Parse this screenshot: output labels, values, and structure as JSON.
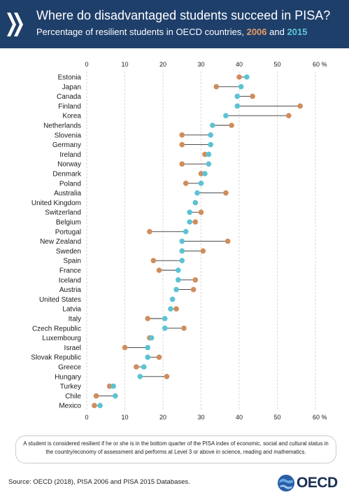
{
  "header": {
    "title": "Where do disadvantaged students succeed in PISA?",
    "subtitle_prefix": "Percentage of resilient students in OECD countries, ",
    "subtitle_year1": "2006",
    "subtitle_and": " and ",
    "subtitle_year2": "2015"
  },
  "colors": {
    "header_bg": "#1f3f6b",
    "series_2006": "#d08d5c",
    "series_2015": "#5bc3d2",
    "connector": "#333333",
    "grid": "#d0d0d0"
  },
  "chart_data": {
    "type": "dumbbell",
    "xlim": [
      0,
      60
    ],
    "x_ticks": [
      0,
      10,
      20,
      30,
      40,
      50,
      60
    ],
    "x_unit_label": "%",
    "grid": true,
    "series": [
      {
        "name": "2006",
        "color": "#d08d5c"
      },
      {
        "name": "2015",
        "color": "#5bc3d2"
      }
    ],
    "rows": [
      {
        "country": "Estonia",
        "y2006": 40,
        "y2015": 42
      },
      {
        "country": "Japan",
        "y2006": 34,
        "y2015": 40.5
      },
      {
        "country": "Canada",
        "y2006": 43.5,
        "y2015": 39.5
      },
      {
        "country": "Finland",
        "y2006": 56,
        "y2015": 39.5
      },
      {
        "country": "Korea",
        "y2006": 53,
        "y2015": 36.5
      },
      {
        "country": "Netherlands",
        "y2006": 38,
        "y2015": 33
      },
      {
        "country": "Slovenia",
        "y2006": 25,
        "y2015": 32.5
      },
      {
        "country": "Germany",
        "y2006": 25,
        "y2015": 32.5
      },
      {
        "country": "Ireland",
        "y2006": 31,
        "y2015": 32
      },
      {
        "country": "Norway",
        "y2006": 25,
        "y2015": 32
      },
      {
        "country": "Denmark",
        "y2006": 30,
        "y2015": 31
      },
      {
        "country": "Poland",
        "y2006": 26,
        "y2015": 30
      },
      {
        "country": "Australia",
        "y2006": 36.5,
        "y2015": 29
      },
      {
        "country": "United Kingdom",
        "y2015": 28.5
      },
      {
        "country": "Switzerland",
        "y2006": 30,
        "y2015": 27
      },
      {
        "country": "Belgium",
        "y2006": 28.5,
        "y2015": 27
      },
      {
        "country": "Portugal",
        "y2006": 16.5,
        "y2015": 26
      },
      {
        "country": "New Zealand",
        "y2006": 37,
        "y2015": 25
      },
      {
        "country": "Sweden",
        "y2006": 30.5,
        "y2015": 25
      },
      {
        "country": "Spain",
        "y2006": 17.5,
        "y2015": 25
      },
      {
        "country": "France",
        "y2006": 19,
        "y2015": 24
      },
      {
        "country": "Iceland",
        "y2006": 28.5,
        "y2015": 24
      },
      {
        "country": "Austria",
        "y2006": 28,
        "y2015": 23.5
      },
      {
        "country": "United States",
        "y2015": 22.5
      },
      {
        "country": "Latvia",
        "y2006": 23.5,
        "y2015": 22
      },
      {
        "country": "Italy",
        "y2006": 16,
        "y2015": 20.5
      },
      {
        "country": "Czech Republic",
        "y2006": 25.5,
        "y2015": 20.5
      },
      {
        "country": "Luxembourg",
        "y2006": 16.5,
        "y2015": 17
      },
      {
        "country": "Israel",
        "y2006": 10,
        "y2015": 16
      },
      {
        "country": "Slovak Republic",
        "y2006": 19,
        "y2015": 16
      },
      {
        "country": "Greece",
        "y2006": 13,
        "y2015": 15
      },
      {
        "country": "Hungary",
        "y2006": 21,
        "y2015": 14
      },
      {
        "country": "Turkey",
        "y2006": 6,
        "y2015": 7
      },
      {
        "country": "Chile",
        "y2006": 2.5,
        "y2015": 7.5
      },
      {
        "country": "Mexico",
        "y2006": 2,
        "y2015": 3.5
      }
    ]
  },
  "note": "A student is considered resilient if he or she is in the bottom quarter of the PISA index of economic, social and cultural status in the country/economy of assessment and performs at Level 3 or above in science, reading and mathematics.",
  "source": "Source: OECD (2018), PISA 2006 and PISA 2015 Databases.",
  "brand": {
    "name": "OECD"
  }
}
